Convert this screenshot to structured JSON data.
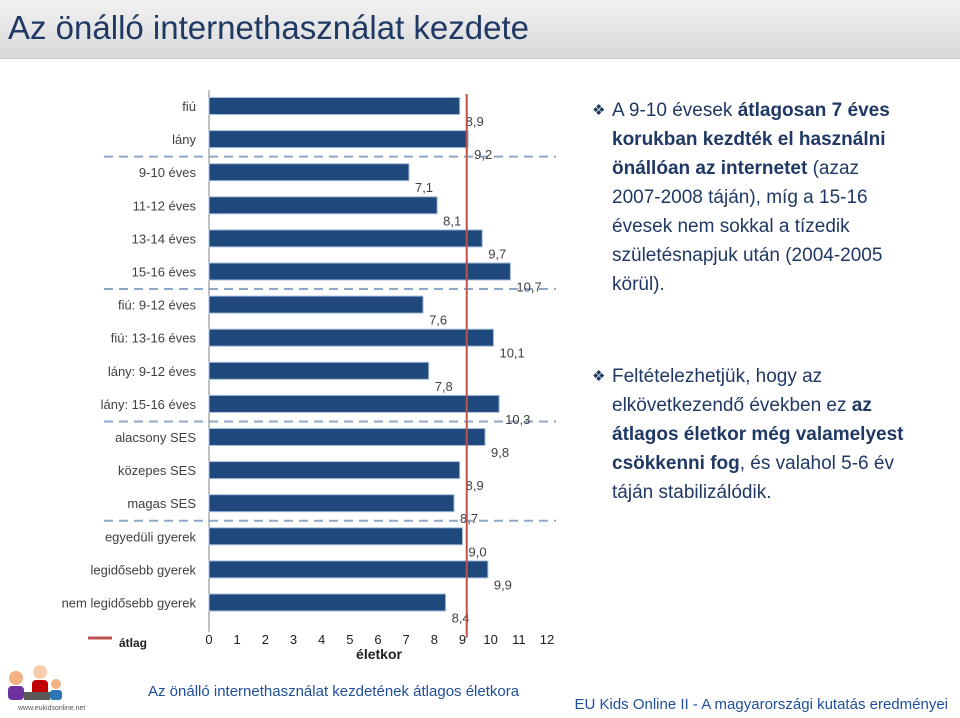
{
  "title": "Az önálló internethasználat kezdete",
  "chart_data": {
    "type": "bar",
    "orientation": "horizontal",
    "categories": [
      "fiú",
      "lány",
      "9-10 éves",
      "11-12 éves",
      "13-14 éves",
      "15-16 éves",
      "fiú: 9-12 éves",
      "fiú: 13-16 éves",
      "lány: 9-12 éves",
      "lány: 15-16 éves",
      "alacsony SES",
      "közepes SES",
      "magas SES",
      "egyedüli gyerek",
      "legidősebb gyerek",
      "nem legidősebb gyerek"
    ],
    "values": [
      8.9,
      9.2,
      7.1,
      8.1,
      9.7,
      10.7,
      7.6,
      10.1,
      7.8,
      10.3,
      9.8,
      8.9,
      8.7,
      9.0,
      9.9,
      8.4
    ],
    "value_labels": [
      "8,9",
      "9,2",
      "7,1",
      "8,1",
      "9,7",
      "10,7",
      "7,6",
      "10,1",
      "7,8",
      "10,3",
      "9,8",
      "8,9",
      "8,7",
      "9,0",
      "9,9",
      "8,4"
    ],
    "reference_line": {
      "name": "átlag",
      "value": 9.15,
      "color": "#c0504d"
    },
    "xlabel": "életkor",
    "xlim": [
      0,
      12
    ],
    "xticks": [
      "0",
      "1",
      "2",
      "3",
      "4",
      "5",
      "6",
      "7",
      "8",
      "9",
      "10",
      "11",
      "12"
    ],
    "group_separators_after": [
      1,
      5,
      9,
      12
    ],
    "bar_color": "#1f497d",
    "legend": "bottom-left"
  },
  "bullets": [
    {
      "parts": [
        {
          "text": "A 9-10 évesek ",
          "bold": false
        },
        {
          "text": "átlagosan 7 éves korukban kezdték el használni önállóan az internetet",
          "bold": true
        },
        {
          "text": " (azaz 2007-2008 táján), míg a 15-16 évesek nem sokkal a tízedik születésnapjuk után (2004-2005 körül).",
          "bold": false
        }
      ]
    },
    {
      "parts": [
        {
          "text": "Feltételezhetjük, hogy az elkövetkezendő években ez ",
          "bold": false
        },
        {
          "text": "az átlagos életkor még valamelyest csökkenni fog",
          "bold": true
        },
        {
          "text": ", és valahol 5-6 év táján stabilizálódik.",
          "bold": false
        }
      ]
    }
  ],
  "caption": "Az önálló internethasználat kezdetének átlagos életkora",
  "footer": "EU Kids Online II - A magyarországi kutatás eredményei",
  "logo_text": "www.eukidsonline.net"
}
